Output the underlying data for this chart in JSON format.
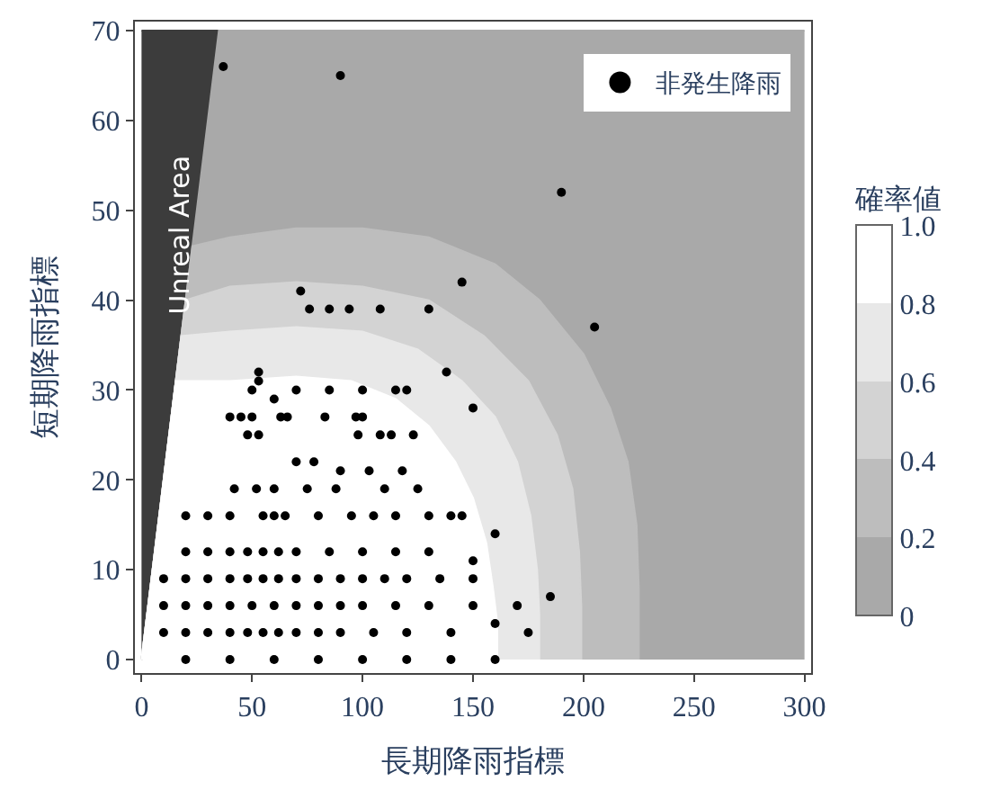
{
  "chart_data": {
    "type": "area",
    "xlabel": "長期降雨指標",
    "ylabel": "短期降雨指標",
    "clabel": "確率値",
    "colors": [
      "#a9a9a9",
      "#bdbdbd",
      "#d3d3d3",
      "#e8e8e8",
      "#ffffff"
    ],
    "clim": [
      0,
      1
    ],
    "cticks": [
      0,
      {
        "value": 0.2,
        "label": "0.2"
      },
      {
        "value": 0.4,
        "label": "0.4"
      },
      {
        "value": 0.6,
        "label": "0.6"
      },
      {
        "value": 0.8,
        "label": "0.8"
      },
      {
        "value": 1,
        "label": "1.0"
      }
    ],
    "xlim": [
      -3,
      303
    ],
    "ylim": [
      -1.5,
      71
    ],
    "xticks": [
      0,
      50,
      100,
      150,
      200,
      250,
      300
    ],
    "yticks": [
      0,
      10,
      20,
      30,
      40,
      50,
      60,
      70
    ],
    "series": [
      {
        "color": "#3c3c3c",
        "x": [
          0,
          35
        ],
        "values": [
          70,
          70
        ]
      },
      {
        "color": "#a9a9a9",
        "x": [
          0,
          35,
          300
        ],
        "values": [
          0,
          70,
          70
        ]
      },
      {
        "color": "#bdbdbd",
        "x": [
          0,
          23,
          40,
          70,
          100,
          130,
          160,
          180,
          200,
          212,
          220,
          224,
          225,
          225
        ],
        "values": [
          0,
          46,
          47,
          48,
          48,
          47,
          44,
          40,
          34,
          28,
          22,
          15,
          8,
          0
        ]
      },
      {
        "color": "#d3d3d3",
        "x": [
          0,
          20,
          40,
          70,
          100,
          130,
          155,
          175,
          188,
          195,
          198,
          199,
          199
        ],
        "values": [
          0,
          40,
          41.5,
          42,
          41.5,
          40,
          36,
          31,
          25,
          19,
          12,
          6,
          0
        ]
      },
      {
        "color": "#e8e8e8",
        "x": [
          0,
          18,
          40,
          70,
          100,
          125,
          145,
          160,
          170,
          176,
          179,
          180,
          180
        ],
        "values": [
          0,
          36,
          36.5,
          37,
          36.5,
          34.5,
          31,
          27,
          22,
          16,
          10,
          5,
          0
        ]
      },
      {
        "color": "#ffffff",
        "x": [
          0,
          15.5,
          40,
          70,
          95,
          115,
          130,
          142,
          150,
          156,
          159,
          161,
          161
        ],
        "values": [
          0,
          31,
          31,
          31.5,
          31,
          29,
          26,
          22,
          18,
          13,
          8,
          4,
          0
        ]
      },
      {
        "type": "scatter",
        "name": "非発生降雨",
        "color": "#000000",
        "marker": "circle",
        "x": [
          37,
          90,
          190,
          145,
          205,
          72,
          76,
          85,
          94,
          108,
          130,
          53,
          53,
          50,
          138,
          120,
          60,
          70,
          85,
          100,
          115,
          150,
          40,
          45,
          50,
          63,
          66,
          83,
          97,
          100,
          48,
          53,
          98,
          108,
          113,
          123,
          70,
          78,
          90,
          103,
          118,
          42,
          52,
          60,
          75,
          88,
          110,
          125,
          145,
          20,
          30,
          40,
          55,
          60,
          65,
          80,
          95,
          105,
          115,
          130,
          140,
          160,
          20,
          30,
          40,
          48,
          55,
          62,
          70,
          85,
          100,
          115,
          130,
          150,
          10,
          20,
          30,
          40,
          48,
          55,
          62,
          70,
          80,
          90,
          100,
          110,
          120,
          135,
          150,
          170,
          10,
          20,
          30,
          40,
          50,
          60,
          70,
          80,
          90,
          100,
          115,
          130,
          150,
          185,
          10,
          20,
          30,
          40,
          48,
          55,
          62,
          70,
          80,
          90,
          105,
          120,
          140,
          160,
          175,
          20,
          40,
          60,
          80,
          100,
          120,
          140,
          160
        ],
        "values": [
          66,
          65,
          52,
          42,
          37,
          41,
          39,
          39,
          39,
          39,
          39,
          32,
          31,
          30,
          32,
          30,
          29,
          30,
          30,
          30,
          30,
          28,
          27,
          27,
          27,
          27,
          27,
          27,
          27,
          27,
          25,
          25,
          25,
          25,
          25,
          25,
          22,
          22,
          21,
          21,
          21,
          19,
          19,
          19,
          19,
          19,
          19,
          19,
          16,
          16,
          16,
          16,
          16,
          16,
          16,
          16,
          16,
          16,
          16,
          16,
          16,
          14,
          12,
          12,
          12,
          12,
          12,
          12,
          12,
          12,
          12,
          12,
          12,
          11,
          9,
          9,
          9,
          9,
          9,
          9,
          9,
          9,
          9,
          9,
          9,
          9,
          9,
          9,
          9,
          6,
          6,
          6,
          6,
          6,
          6,
          6,
          6,
          6,
          6,
          6,
          6,
          6,
          6,
          7,
          3,
          3,
          3,
          3,
          3,
          3,
          3,
          3,
          3,
          3,
          3,
          3,
          3,
          4,
          3,
          0,
          0,
          0,
          0,
          0,
          0,
          0,
          0
        ]
      }
    ],
    "legend": "top right",
    "annotations": [
      "Unreal Area"
    ]
  }
}
